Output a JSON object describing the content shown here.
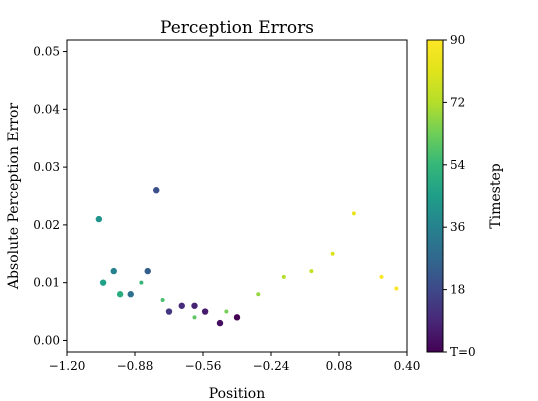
{
  "chart_data": {
    "type": "scatter",
    "title": "Perception Errors",
    "xlabel": "Position",
    "ylabel": "Absolute Perception Error",
    "xlim": [
      -1.2,
      0.4
    ],
    "ylim": [
      -0.002,
      0.052
    ],
    "x_ticks": [
      -1.2,
      -0.88,
      -0.56,
      -0.24,
      0.08,
      0.4
    ],
    "x_tick_labels": [
      "−1.20",
      "−0.88",
      "−0.56",
      "−0.24",
      "0.08",
      "0.40"
    ],
    "y_ticks": [
      0.0,
      0.01,
      0.02,
      0.03,
      0.04,
      0.05
    ],
    "y_tick_labels": [
      "0.00",
      "0.01",
      "0.02",
      "0.03",
      "0.04",
      "0.05"
    ],
    "grid": false,
    "colorbar": {
      "label": "Timestep",
      "colormap": "viridis",
      "range": [
        0,
        90
      ],
      "ticks": [
        0,
        18,
        36,
        54,
        72,
        90
      ],
      "tick_labels": [
        "T=0",
        "18",
        "36",
        "54",
        "72",
        "90"
      ]
    },
    "series": [
      {
        "description_points": "sampled points along trajectory; t = timestep",
        "points": [
          {
            "x": -0.4,
            "y": 0.004,
            "t": 0
          },
          {
            "x": -0.48,
            "y": 0.003,
            "t": 3
          },
          {
            "x": -0.55,
            "y": 0.005,
            "t": 6
          },
          {
            "x": -0.6,
            "y": 0.006,
            "t": 8
          },
          {
            "x": -0.66,
            "y": 0.006,
            "t": 10
          },
          {
            "x": -0.72,
            "y": 0.005,
            "t": 13
          },
          {
            "x": -0.78,
            "y": 0.026,
            "t": 20
          },
          {
            "x": -0.82,
            "y": 0.012,
            "t": 24
          },
          {
            "x": -0.9,
            "y": 0.008,
            "t": 30
          },
          {
            "x": -0.98,
            "y": 0.012,
            "t": 36
          },
          {
            "x": -1.05,
            "y": 0.021,
            "t": 42
          },
          {
            "x": -1.03,
            "y": 0.01,
            "t": 46
          },
          {
            "x": -0.95,
            "y": 0.008,
            "t": 50
          },
          {
            "x": -0.85,
            "y": 0.01,
            "t": 54
          },
          {
            "x": -0.75,
            "y": 0.007,
            "t": 57
          },
          {
            "x": -0.6,
            "y": 0.004,
            "t": 60
          },
          {
            "x": -0.45,
            "y": 0.005,
            "t": 64
          },
          {
            "x": -0.3,
            "y": 0.008,
            "t": 68
          },
          {
            "x": -0.18,
            "y": 0.011,
            "t": 72
          },
          {
            "x": -0.05,
            "y": 0.012,
            "t": 76
          },
          {
            "x": 0.05,
            "y": 0.015,
            "t": 80
          },
          {
            "x": 0.15,
            "y": 0.022,
            "t": 84
          },
          {
            "x": 0.28,
            "y": 0.011,
            "t": 88
          },
          {
            "x": 0.35,
            "y": 0.009,
            "t": 90
          }
        ]
      }
    ]
  }
}
